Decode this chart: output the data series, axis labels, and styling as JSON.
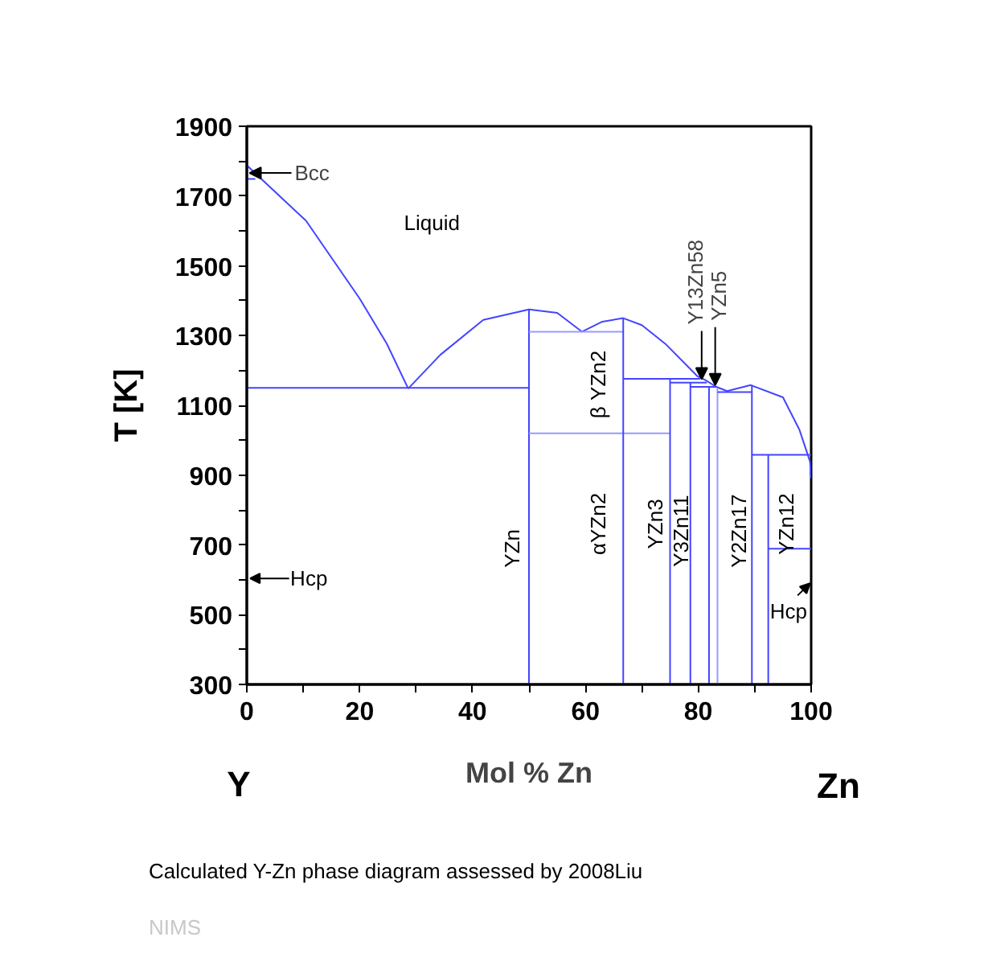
{
  "chart_data": {
    "type": "line",
    "xlabel": "Mol % Zn",
    "ylabel": "T [K]",
    "xlim": [
      0,
      100
    ],
    "ylim": [
      300,
      1900
    ],
    "xticks": [
      0,
      {
        "value": 10,
        "label": null
      },
      20,
      {
        "value": 30,
        "label": null
      },
      40,
      {
        "value": 50,
        "label": null
      },
      60,
      {
        "value": 70,
        "label": null
      },
      80,
      {
        "value": 90,
        "label": null
      },
      100
    ],
    "yticks": [
      300,
      {
        "value": 400,
        "label": null
      },
      500,
      {
        "value": 600,
        "label": null
      },
      700,
      {
        "value": 800,
        "label": null
      },
      900,
      {
        "value": 1000,
        "label": null
      },
      1100,
      {
        "value": 1200,
        "label": null
      },
      1300,
      {
        "value": 1400,
        "label": null
      },
      1500,
      {
        "value": 1600,
        "label": null
      },
      1700,
      {
        "value": 1800,
        "label": null
      },
      1900
    ],
    "grid": false,
    "marker": "none",
    "line_style": "solid",
    "series": [
      {
        "color": "#4444ff",
        "x": [
          0,
          10.5,
          20,
          24.8,
          28.6
        ],
        "values": [
          1788,
          1629,
          1406,
          1277,
          1148
        ]
      },
      {
        "color": "#4444ff",
        "x": [
          28.6,
          34.3,
          41.9,
          50,
          55,
          59.4,
          63,
          66.7,
          70,
          74.2,
          79.8,
          81.2,
          83.2,
          85.1,
          89.3,
          95,
          97.9,
          99.8,
          100
        ],
        "values": [
          1148,
          1245,
          1345,
          1375,
          1365,
          1311,
          1340,
          1350,
          1330,
          1276,
          1184,
          1173,
          1153,
          1141,
          1158,
          1123,
          1031,
          939,
          891
        ]
      },
      {
        "color": "#4444ff",
        "x": [
          0,
          50
        ],
        "values": [
          1150,
          1150
        ]
      },
      {
        "color": "#4444ff",
        "x": [
          0,
          1.5
        ],
        "values": [
          1749,
          1749
        ]
      },
      {
        "color": "#4444ff",
        "x": [
          50,
          50
        ],
        "values": [
          1375,
          300
        ]
      },
      {
        "color": "#9999ff",
        "x": [
          50,
          66.7
        ],
        "values": [
          1311,
          1311
        ]
      },
      {
        "color": "#9999ff",
        "x": [
          50,
          75
        ],
        "values": [
          1020,
          1020
        ]
      },
      {
        "color": "#4444ff",
        "x": [
          66.7,
          66.7
        ],
        "values": [
          1350,
          300
        ]
      },
      {
        "color": "#4444ff",
        "x": [
          66.7,
          80.3
        ],
        "values": [
          1176,
          1176
        ]
      },
      {
        "color": "#4444ff",
        "x": [
          75,
          75
        ],
        "values": [
          1176,
          300
        ]
      },
      {
        "color": "#4444ff",
        "x": [
          75,
          81.5
        ],
        "values": [
          1165,
          1165
        ]
      },
      {
        "color": "#4444ff",
        "x": [
          78.6,
          78.6
        ],
        "values": [
          1165,
          300
        ]
      },
      {
        "color": "#4444ff",
        "x": [
          78.6,
          83.2
        ],
        "values": [
          1153,
          1153
        ]
      },
      {
        "color": "#4444ff",
        "x": [
          81.9,
          81.9
        ],
        "values": [
          1153,
          300
        ]
      },
      {
        "color": "#9999ff",
        "x": [
          83.4,
          83.4
        ],
        "values": [
          1150,
          300
        ]
      },
      {
        "color": "#4444ff",
        "x": [
          83.4,
          89.5
        ],
        "values": [
          1138,
          1138
        ]
      },
      {
        "color": "#4444ff",
        "x": [
          89.5,
          89.5
        ],
        "values": [
          1158,
          300
        ]
      },
      {
        "color": "#4444ff",
        "x": [
          89.5,
          100
        ],
        "values": [
          958,
          958
        ]
      },
      {
        "color": "#4444ff",
        "x": [
          92.4,
          92.4
        ],
        "values": [
          958,
          300
        ]
      },
      {
        "color": "#4444ff",
        "x": [
          92.4,
          100
        ],
        "values": [
          689,
          689
        ]
      }
    ],
    "annotations": [
      "Liquid",
      {
        "text": "Bcc",
        "x": 0.5,
        "y": 1766
      },
      "Hcp",
      "Hcp",
      {
        "text": "Y13Zn58",
        "x": 80.6,
        "y": 1175
      },
      {
        "text": "YZn5",
        "x": 83.0,
        "y": 1158
      },
      "YZn",
      "β YZn2",
      "αYZn2",
      "YZn3",
      "Y3Zn11",
      "Y2Zn17",
      "YZn12",
      "Y",
      "Zn",
      "Calculated Y-Zn phase diagram assessed by 2008Liu",
      "NIMS"
    ]
  }
}
